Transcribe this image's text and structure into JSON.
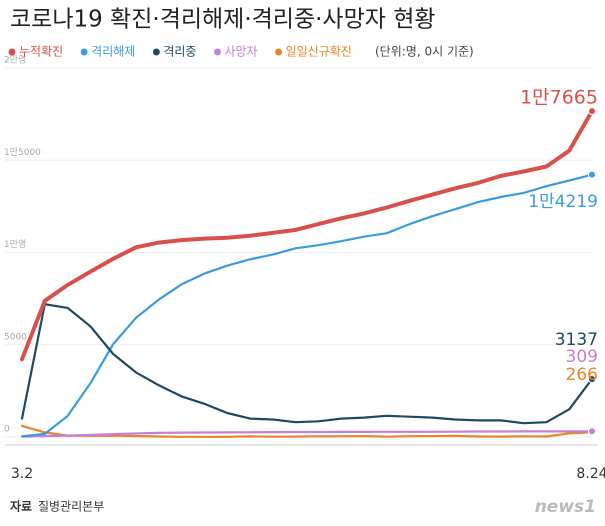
{
  "chart_data": {
    "type": "line",
    "title": "코로나19 확진·격리해제·격리중·사망자 현황",
    "unit_note": "(단위:명, 0시 기준)",
    "source_label": "자료",
    "source": "질병관리본부",
    "brand": "news1",
    "categories": [
      "3.2",
      null,
      null,
      null,
      null,
      null,
      null,
      null,
      null,
      null,
      null,
      null,
      null,
      null,
      null,
      null,
      null,
      null,
      null,
      null,
      null,
      null,
      null,
      null,
      null,
      "8.24"
    ],
    "ylim": [
      0,
      20000
    ],
    "yticks": [
      0,
      5000,
      {
        "value": 10000,
        "label": "1만명"
      },
      {
        "value": 15000,
        "label": "1만5000"
      },
      {
        "value": 20000,
        "label": "2만명"
      }
    ],
    "series": [
      {
        "name": "누적확진",
        "color": "#d9504b",
        "end_label": "1만7665",
        "values": [
          4212,
          7382,
          8236,
          8961,
          9661,
          10284,
          10537,
          10674,
          10752,
          10801,
          10909,
          11065,
          11225,
          11541,
          11852,
          12121,
          12438,
          12800,
          13137,
          13479,
          13771,
          14150,
          14389,
          14660,
          15515,
          17665
        ]
      },
      {
        "name": "격리해제",
        "color": "#3b9be0",
        "end_label": "1만4219",
        "values": [
          30,
          166,
          1137,
          2909,
          5033,
          6463,
          7447,
          8277,
          8854,
          9283,
          9632,
          9888,
          10226,
          10398,
          10611,
          10856,
          11048,
          11537,
          11970,
          12348,
          12733,
          13007,
          13233,
          13592,
          13901,
          14219
        ]
      },
      {
        "name": "격리중",
        "color": "#1e4863",
        "end_label": "3137",
        "values": [
          1000,
          7200,
          7000,
          6000,
          4500,
          3500,
          2800,
          2200,
          1800,
          1300,
          1000,
          950,
          800,
          850,
          1000,
          1050,
          1150,
          1100,
          1050,
          950,
          900,
          900,
          750,
          800,
          1500,
          3137
        ]
      },
      {
        "name": "사망자",
        "color": "#c57fd6",
        "end_label": "309",
        "values": [
          22,
          51,
          75,
          111,
          158,
          192,
          222,
          236,
          243,
          252,
          256,
          263,
          269,
          272,
          276,
          279,
          282,
          283,
          284,
          287,
          296,
          300,
          301,
          304,
          305,
          309
        ]
      },
      {
        "name": "일일신규확진",
        "color": "#e8842a",
        "end_label": "266",
        "values": [
          600,
          250,
          74,
          64,
          78,
          47,
          25,
          9,
          10,
          13,
          35,
          15,
          20,
          38,
          38,
          48,
          17,
          42,
          48,
          62,
          26,
          23,
          34,
          28,
          197,
          266
        ]
      }
    ]
  }
}
